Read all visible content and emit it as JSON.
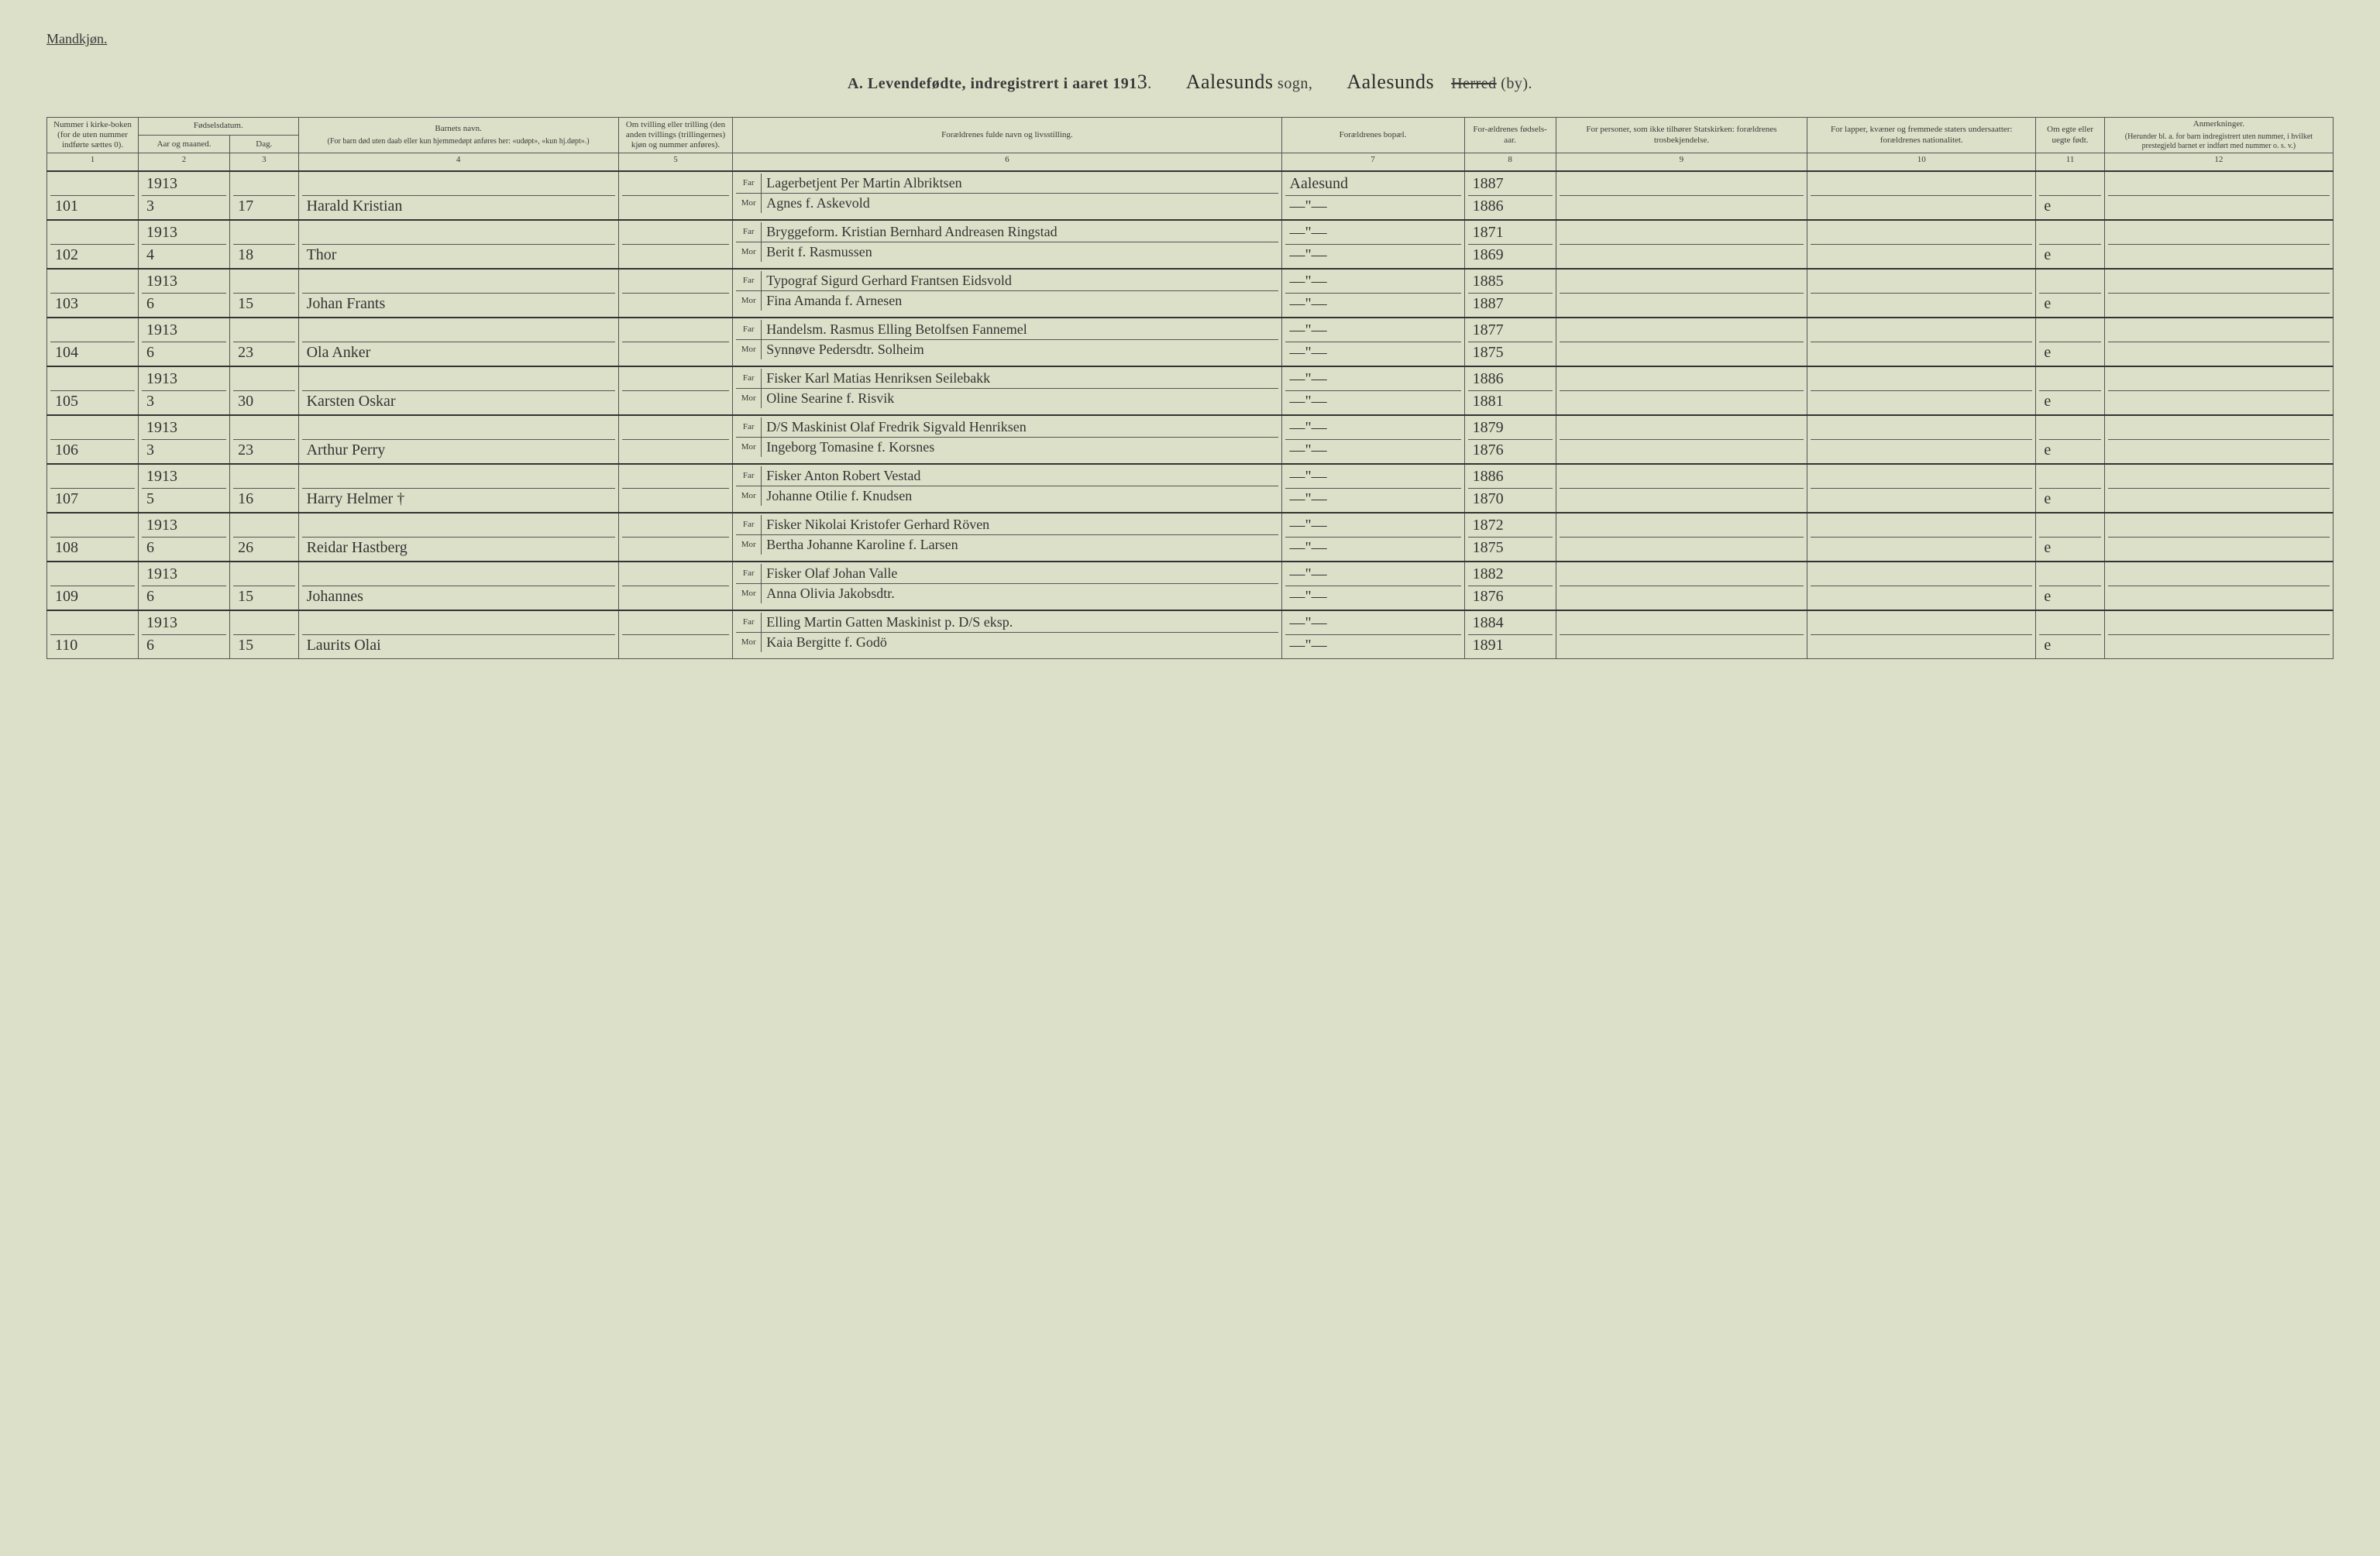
{
  "header": {
    "corner": "Mandkjøn.",
    "title_prefix": "A.  Levendefødte, indregistrert i aaret 191",
    "year_digit": "3",
    "period": ".",
    "sogn_hand": "Aalesunds",
    "sogn_print": "sogn,",
    "herred_hand": "Aalesunds",
    "herred_strike": "Herred",
    "herred_by": "(by)."
  },
  "columns": {
    "c1": "Nummer i kirke-boken (for de uten nummer indførte sættes 0).",
    "c23_top": "Fødselsdatum.",
    "c2": "Aar og maaned.",
    "c3": "Dag.",
    "c4": "Barnets navn.",
    "c4_sub": "(For barn død uten daab eller kun hjemmedøpt anføres her: «udøpt», «kun hj.døpt».)",
    "c5": "Om tvilling eller trilling (den anden tvillings (trillingernes) kjøn og nummer anføres).",
    "c6": "Forældrenes fulde navn og livsstilling.",
    "c7": "Forældrenes bopæl.",
    "c8": "For-ældrenes fødsels-aar.",
    "c9": "For personer, som ikke tilhører Statskirken: forældrenes trosbekjendelse.",
    "c10": "For lapper, kvæner og fremmede staters undersaatter: forældrenes nationalitet.",
    "c11": "Om egte eller uegte født.",
    "c12": "Anmerkninger.",
    "c12_sub": "(Herunder bl. a. for barn indregistrert uten nummer, i hvilket prestegjeld barnet er indført med nummer o. s. v.)"
  },
  "colnums": [
    "1",
    "2",
    "3",
    "4",
    "5",
    "6",
    "7",
    "8",
    "9",
    "10",
    "11",
    "12"
  ],
  "far_label": "Far",
  "mor_label": "Mor",
  "rows": [
    {
      "num": "101",
      "aar": "1913",
      "mnd": "3",
      "dag": "17",
      "navn": "Harald Kristian",
      "far": "Lagerbetjent Per Martin Albriktsen",
      "mor": "Agnes f. Askevold",
      "bopel": "Aalesund",
      "faar_far": "1887",
      "faar_mor": "1886",
      "egte": "e"
    },
    {
      "num": "102",
      "aar": "1913",
      "mnd": "4",
      "dag": "18",
      "navn": "Thor",
      "far": "Bryggeform. Kristian Bernhard Andreasen Ringstad",
      "mor": "Berit f. Rasmussen",
      "bopel": "—\"—",
      "faar_far": "1871",
      "faar_mor": "1869",
      "egte": "e"
    },
    {
      "num": "103",
      "aar": "1913",
      "mnd": "6",
      "dag": "15",
      "navn": "Johan Frants",
      "far": "Typograf Sigurd Gerhard Frantsen Eidsvold",
      "mor": "Fina Amanda f. Arnesen",
      "bopel": "—\"—",
      "faar_far": "1885",
      "faar_mor": "1887",
      "egte": "e"
    },
    {
      "num": "104",
      "aar": "1913",
      "mnd": "6",
      "dag": "23",
      "navn": "Ola Anker",
      "far": "Handelsm. Rasmus Elling Betolfsen Fannemel",
      "mor": "Synnøve Pedersdtr. Solheim",
      "bopel": "—\"—",
      "faar_far": "1877",
      "faar_mor": "1875",
      "egte": "e"
    },
    {
      "num": "105",
      "aar": "1913",
      "mnd": "3",
      "dag": "30",
      "navn": "Karsten Oskar",
      "far": "Fisker Karl Matias Henriksen Seilebakk",
      "mor": "Oline Searine f. Risvik",
      "bopel": "—\"—",
      "faar_far": "1886",
      "faar_mor": "1881",
      "egte": "e"
    },
    {
      "num": "106",
      "aar": "1913",
      "mnd": "3",
      "dag": "23",
      "navn": "Arthur Perry",
      "far": "D/S Maskinist Olaf Fredrik Sigvald Henriksen",
      "mor": "Ingeborg Tomasine f. Korsnes",
      "bopel": "—\"—",
      "faar_far": "1879",
      "faar_mor": "1876",
      "egte": "e"
    },
    {
      "num": "107",
      "aar": "1913",
      "mnd": "5",
      "dag": "16",
      "navn": "Harry Helmer  †",
      "far": "Fisker Anton Robert Vestad",
      "mor": "Johanne Otilie f. Knudsen",
      "bopel": "—\"—",
      "faar_far": "1886",
      "faar_mor": "1870",
      "egte": "e"
    },
    {
      "num": "108",
      "aar": "1913",
      "mnd": "6",
      "dag": "26",
      "navn": "Reidar Hastberg",
      "far": "Fisker Nikolai Kristofer Gerhard Röven",
      "mor": "Bertha Johanne Karoline f. Larsen",
      "bopel": "—\"—",
      "faar_far": "1872",
      "faar_mor": "1875",
      "egte": "e"
    },
    {
      "num": "109",
      "aar": "1913",
      "mnd": "6",
      "dag": "15",
      "navn": "Johannes",
      "far": "Fisker Olaf Johan Valle",
      "mor": "Anna Olivia Jakobsdtr.",
      "bopel": "—\"—",
      "faar_far": "1882",
      "faar_mor": "1876",
      "egte": "e"
    },
    {
      "num": "110",
      "aar": "1913",
      "mnd": "6",
      "dag": "15",
      "navn": "Laurits Olai",
      "far": "Elling Martin Gatten Maskinist p. D/S eksp.",
      "mor": "Kaia Bergitte f. Godö",
      "bopel": "—\"—",
      "faar_far": "1884",
      "faar_mor": "1891",
      "egte": "e"
    }
  ],
  "styling": {
    "paper_color": "#dce0c8",
    "ink_color": "#3a3a3a",
    "rule_color": "#555555",
    "heavy_rule_color": "#333333",
    "hand_font": "cursive",
    "print_font": "serif"
  }
}
